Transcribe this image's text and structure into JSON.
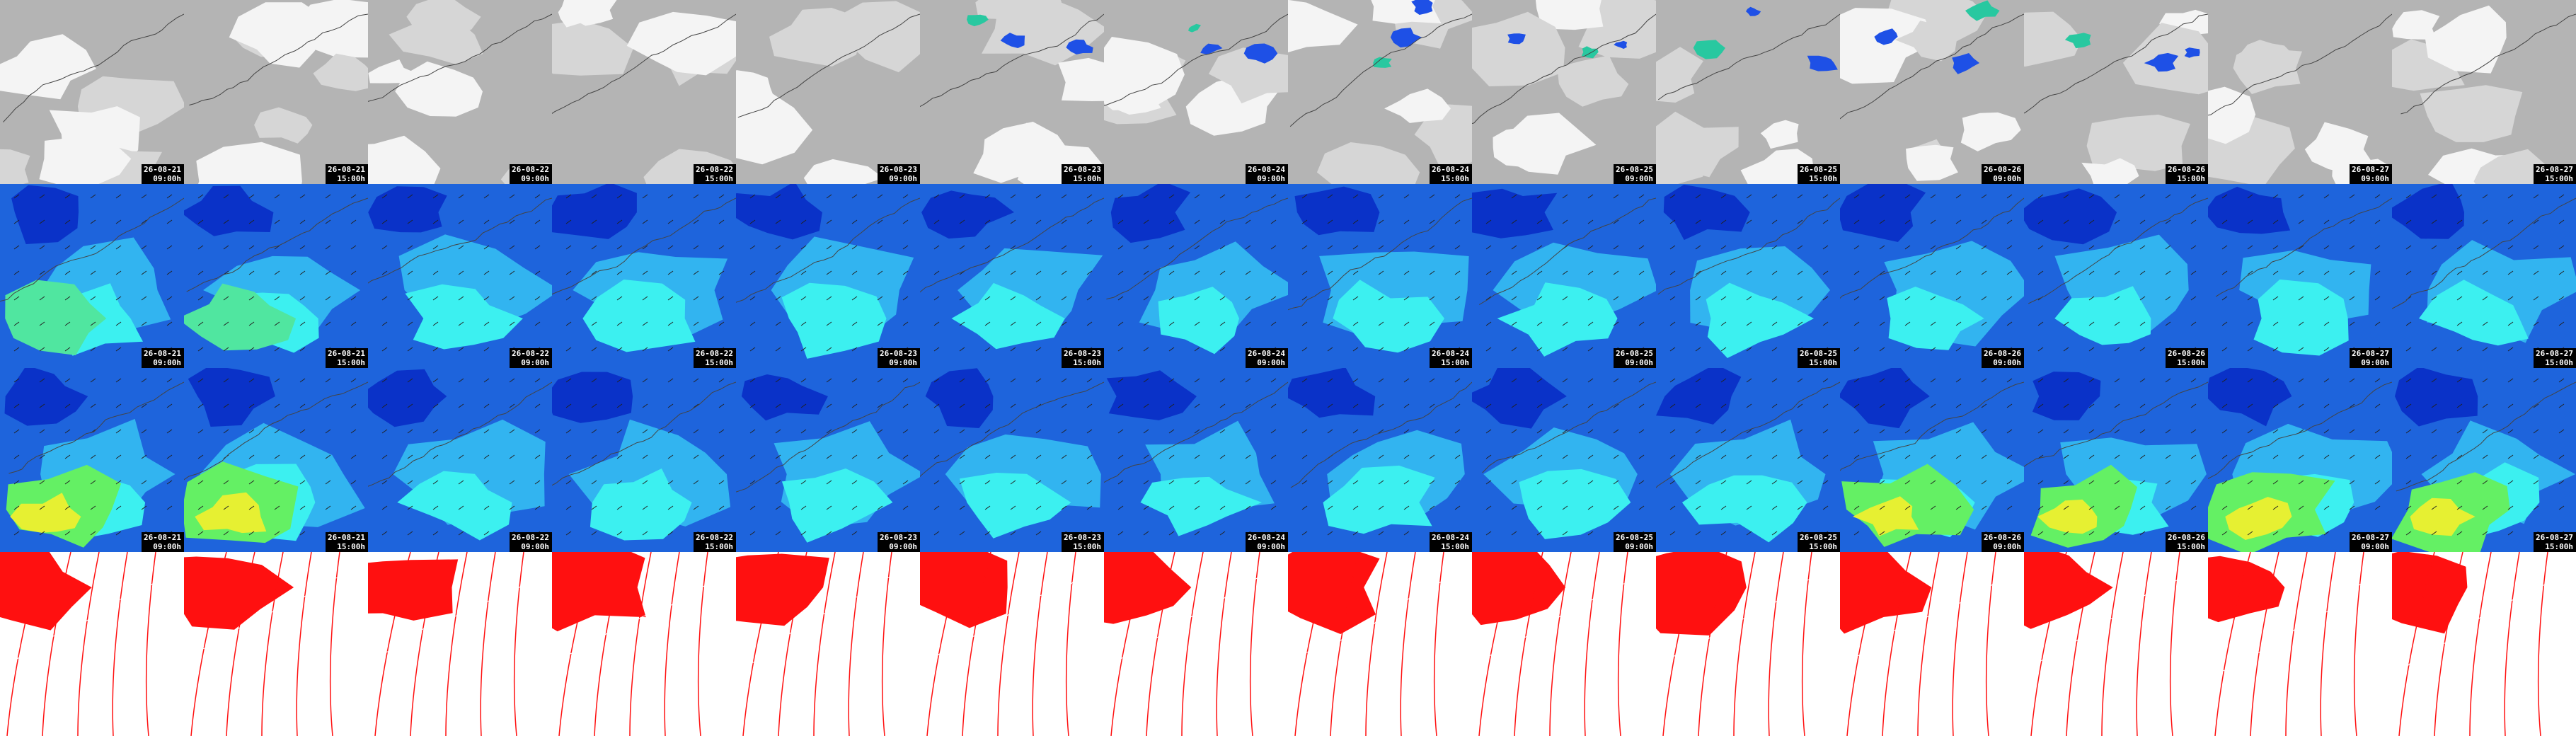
{
  "columns": [
    {
      "date": "26-08-21",
      "time": "09:00h"
    },
    {
      "date": "26-08-21",
      "time": "15:00h"
    },
    {
      "date": "26-08-22",
      "time": "09:00h"
    },
    {
      "date": "26-08-22",
      "time": "15:00h"
    },
    {
      "date": "26-08-23",
      "time": "09:00h"
    },
    {
      "date": "26-08-23",
      "time": "15:00h"
    },
    {
      "date": "26-08-24",
      "time": "09:00h"
    },
    {
      "date": "26-08-24",
      "time": "15:00h"
    },
    {
      "date": "26-08-25",
      "time": "09:00h"
    },
    {
      "date": "26-08-25",
      "time": "15:00h"
    },
    {
      "date": "26-08-26",
      "time": "09:00h"
    },
    {
      "date": "26-08-26",
      "time": "15:00h"
    },
    {
      "date": "26-08-27",
      "time": "09:00h"
    },
    {
      "date": "26-08-27",
      "time": "15:00h"
    }
  ]
}
